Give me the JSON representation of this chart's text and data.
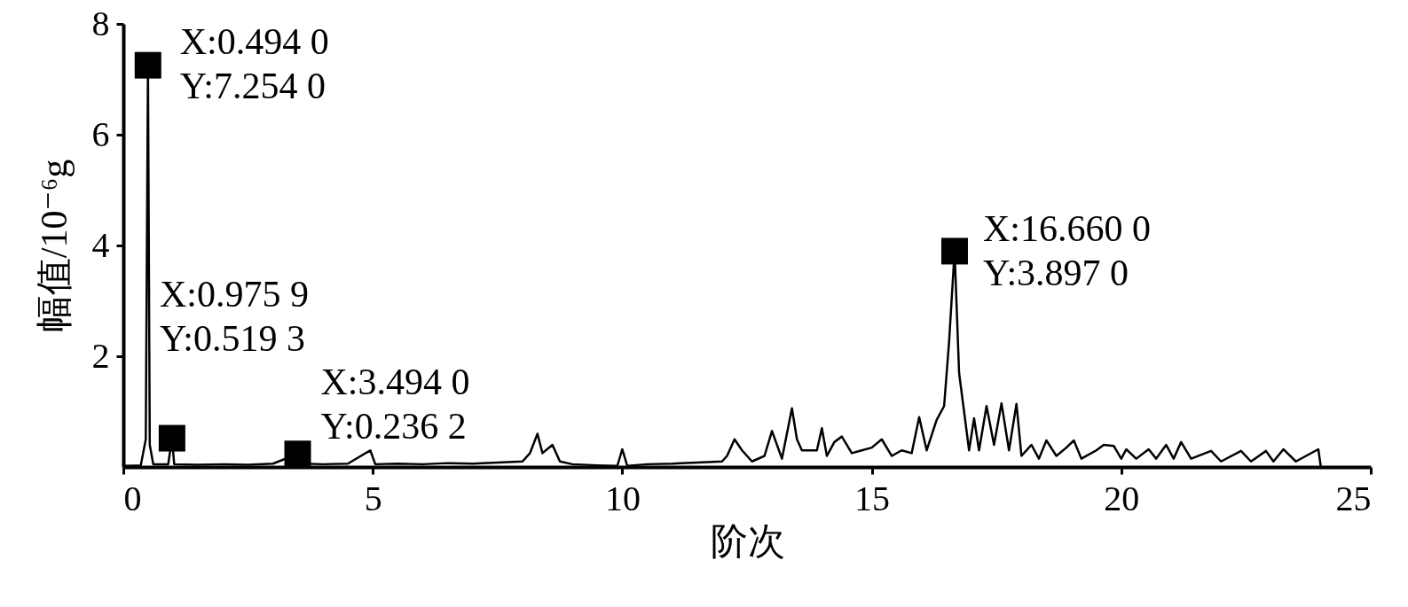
{
  "chart_data": {
    "type": "line",
    "xlabel": "阶次",
    "ylabel": "幅值/10⁻⁶g",
    "xlim": [
      0,
      25
    ],
    "xticks": [
      0,
      5,
      10,
      15,
      20,
      25
    ],
    "ylim": [
      0,
      8
    ],
    "yticks": [
      2,
      4,
      6,
      8
    ],
    "grid": false,
    "series": [
      {
        "color": "#000000",
        "marker": "none",
        "x": [
          0,
          0.35,
          0.45,
          0.494,
          0.53,
          0.6,
          0.9,
          0.9759,
          1.02,
          1.5,
          2,
          2.5,
          3,
          3.494,
          3.6,
          4,
          4.5,
          4.95,
          5.05,
          5.5,
          6,
          6.5,
          7,
          7.5,
          8,
          8.15,
          8.3,
          8.4,
          8.6,
          8.75,
          9,
          9.5,
          9.9,
          10.0,
          10.1,
          10.5,
          11,
          11.5,
          12,
          12.1,
          12.25,
          12.4,
          12.6,
          12.85,
          13.0,
          13.2,
          13.4,
          13.5,
          13.6,
          13.9,
          14.0,
          14.1,
          14.25,
          14.4,
          14.6,
          14.8,
          15.0,
          15.2,
          15.4,
          15.6,
          15.8,
          15.95,
          16.1,
          16.3,
          16.45,
          16.55,
          16.66,
          16.75,
          16.85,
          16.95,
          17.05,
          17.15,
          17.3,
          17.45,
          17.6,
          17.75,
          17.9,
          18.0,
          18.2,
          18.35,
          18.5,
          18.7,
          18.9,
          19.05,
          19.2,
          19.5,
          19.65,
          19.85,
          20.0,
          20.1,
          20.3,
          20.55,
          20.7,
          20.9,
          21.05,
          21.2,
          21.4,
          21.8,
          22.0,
          22.4,
          22.6,
          22.9,
          23.05,
          23.25,
          23.5,
          23.95,
          24.0
        ],
        "values": [
          0.02,
          0.03,
          0.5,
          7.254,
          0.4,
          0.05,
          0.05,
          0.5193,
          0.05,
          0.04,
          0.05,
          0.04,
          0.06,
          0.2362,
          0.06,
          0.05,
          0.06,
          0.3,
          0.05,
          0.06,
          0.05,
          0.07,
          0.06,
          0.08,
          0.1,
          0.25,
          0.6,
          0.25,
          0.4,
          0.1,
          0.05,
          0.03,
          0.02,
          0.32,
          0.02,
          0.05,
          0.06,
          0.08,
          0.1,
          0.2,
          0.5,
          0.3,
          0.1,
          0.2,
          0.65,
          0.15,
          1.06,
          0.5,
          0.3,
          0.3,
          0.7,
          0.2,
          0.45,
          0.55,
          0.25,
          0.3,
          0.35,
          0.5,
          0.2,
          0.3,
          0.25,
          0.9,
          0.3,
          0.85,
          1.1,
          2.27,
          3.897,
          1.7,
          1.0,
          0.3,
          0.88,
          0.3,
          1.1,
          0.4,
          1.15,
          0.3,
          1.14,
          0.2,
          0.4,
          0.15,
          0.48,
          0.2,
          0.35,
          0.48,
          0.15,
          0.3,
          0.4,
          0.38,
          0.15,
          0.32,
          0.15,
          0.32,
          0.15,
          0.4,
          0.15,
          0.45,
          0.15,
          0.29,
          0.1,
          0.29,
          0.1,
          0.29,
          0.1,
          0.32,
          0.1,
          0.32,
          0
        ]
      },
      {
        "type": "scatter",
        "color": "#000000",
        "marker": "square",
        "x": [
          0.494,
          0.9759,
          3.494,
          16.66
        ],
        "values": [
          7.254,
          0.5193,
          0.2362,
          3.897
        ]
      }
    ],
    "annotations": [
      {
        "text": "X:0.494 0\nY:7.254 0",
        "x": 0.494,
        "y": 7.254
      },
      {
        "text": "X:0.975 9\nY:0.519 3",
        "x": 0.9759,
        "y": 0.5193
      },
      {
        "text": "X:3.494 0\nY:0.236 2",
        "x": 3.494,
        "y": 0.2362
      },
      {
        "text": "X:16.660 0\nY:3.897 0",
        "x": 16.66,
        "y": 3.897
      }
    ]
  }
}
